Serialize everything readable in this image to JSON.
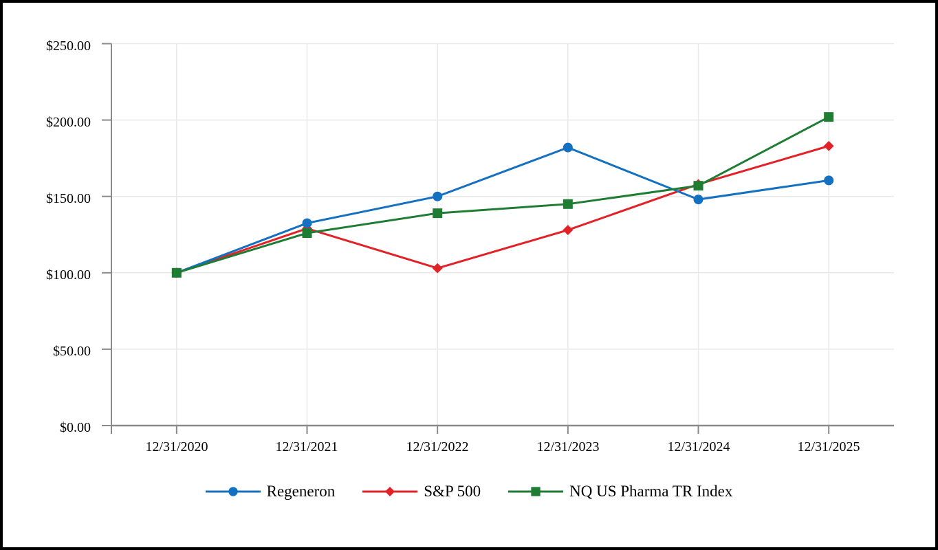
{
  "chart_data": {
    "type": "line",
    "x_labels": [
      "12/31/2020",
      "12/31/2021",
      "12/31/2022",
      "12/31/2023",
      "12/31/2024",
      "12/31/2025"
    ],
    "y_tick_labels": [
      "$250.00",
      "$200.00",
      "$150.00",
      "$100.00",
      "$50.00",
      "$0.00"
    ],
    "ylim": [
      0,
      250
    ],
    "y_step": 50,
    "grid": true,
    "legend_position": "bottom",
    "grid_color": "#e9e9e9",
    "axis_color": "#8a8a8a",
    "series": [
      {
        "name": "Regeneron",
        "marker": "circle",
        "color": "#1470c0",
        "values": [
          100,
          132.5,
          150,
          182,
          148,
          160.5
        ]
      },
      {
        "name": "S&P 500",
        "marker": "diamond",
        "color": "#e32227",
        "values": [
          100,
          129,
          103,
          128,
          158,
          183
        ]
      },
      {
        "name": "NQ US Pharma TR Index",
        "marker": "square",
        "color": "#1e7d33",
        "values": [
          100,
          126,
          139,
          145,
          157,
          202
        ]
      }
    ]
  }
}
